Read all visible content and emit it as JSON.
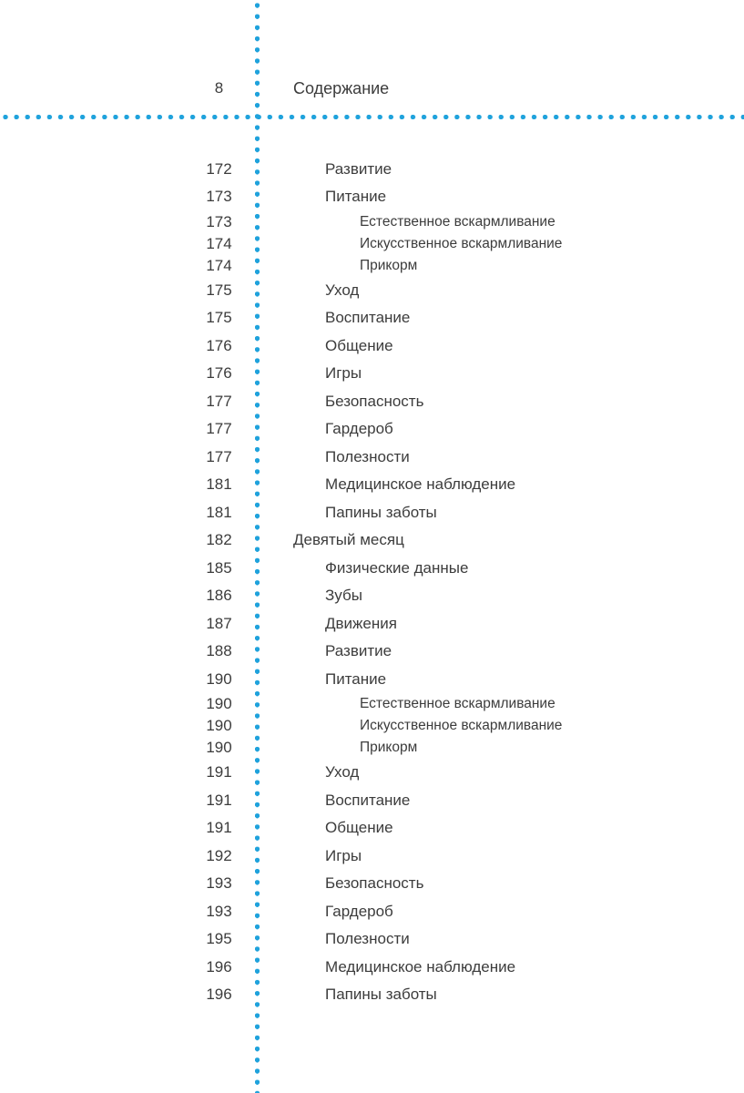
{
  "header": {
    "page_number": "8",
    "title": "Содержание"
  },
  "toc": {
    "entries": [
      {
        "page": "172",
        "title": "Развитие",
        "level": 2
      },
      {
        "page": "173",
        "title": "Питание",
        "level": 2
      },
      {
        "page": "173",
        "title": "Естественное вскармливание",
        "level": 3
      },
      {
        "page": "174",
        "title": "Искусственное вскармливание",
        "level": 3
      },
      {
        "page": "174",
        "title": "Прикорм",
        "level": 3
      },
      {
        "page": "175",
        "title": "Уход",
        "level": 2
      },
      {
        "page": "175",
        "title": "Воспитание",
        "level": 2
      },
      {
        "page": "176",
        "title": "Общение",
        "level": 2
      },
      {
        "page": "176",
        "title": "Игры",
        "level": 2
      },
      {
        "page": "177",
        "title": "Безопасность",
        "level": 2
      },
      {
        "page": "177",
        "title": "Гардероб",
        "level": 2
      },
      {
        "page": "177",
        "title": "Полезности",
        "level": 2
      },
      {
        "page": "181",
        "title": "Медицинское наблюдение",
        "level": 2
      },
      {
        "page": "181",
        "title": "Папины заботы",
        "level": 2
      },
      {
        "page": "182",
        "title": "Девятый месяц",
        "level": 1
      },
      {
        "page": "185",
        "title": "Физические данные",
        "level": 2
      },
      {
        "page": "186",
        "title": "Зубы",
        "level": 2
      },
      {
        "page": "187",
        "title": "Движения",
        "level": 2
      },
      {
        "page": "188",
        "title": "Развитие",
        "level": 2
      },
      {
        "page": "190",
        "title": "Питание",
        "level": 2
      },
      {
        "page": "190",
        "title": "Естественное вскармливание",
        "level": 3
      },
      {
        "page": "190",
        "title": "Искусственное вскармливание",
        "level": 3
      },
      {
        "page": "190",
        "title": "Прикорм",
        "level": 3
      },
      {
        "page": "191",
        "title": "Уход",
        "level": 2
      },
      {
        "page": "191",
        "title": "Воспитание",
        "level": 2
      },
      {
        "page": "191",
        "title": "Общение",
        "level": 2
      },
      {
        "page": "192",
        "title": "Игры",
        "level": 2
      },
      {
        "page": "193",
        "title": "Безопасность",
        "level": 2
      },
      {
        "page": "193",
        "title": "Гардероб",
        "level": 2
      },
      {
        "page": "195",
        "title": "Полезности",
        "level": 2
      },
      {
        "page": "196",
        "title": "Медицинское наблюдение",
        "level": 2
      },
      {
        "page": "196",
        "title": "Папины заботы",
        "level": 2
      }
    ]
  },
  "colors": {
    "accent_blue": "#1fa2dc",
    "text": "#3c3c3c"
  }
}
